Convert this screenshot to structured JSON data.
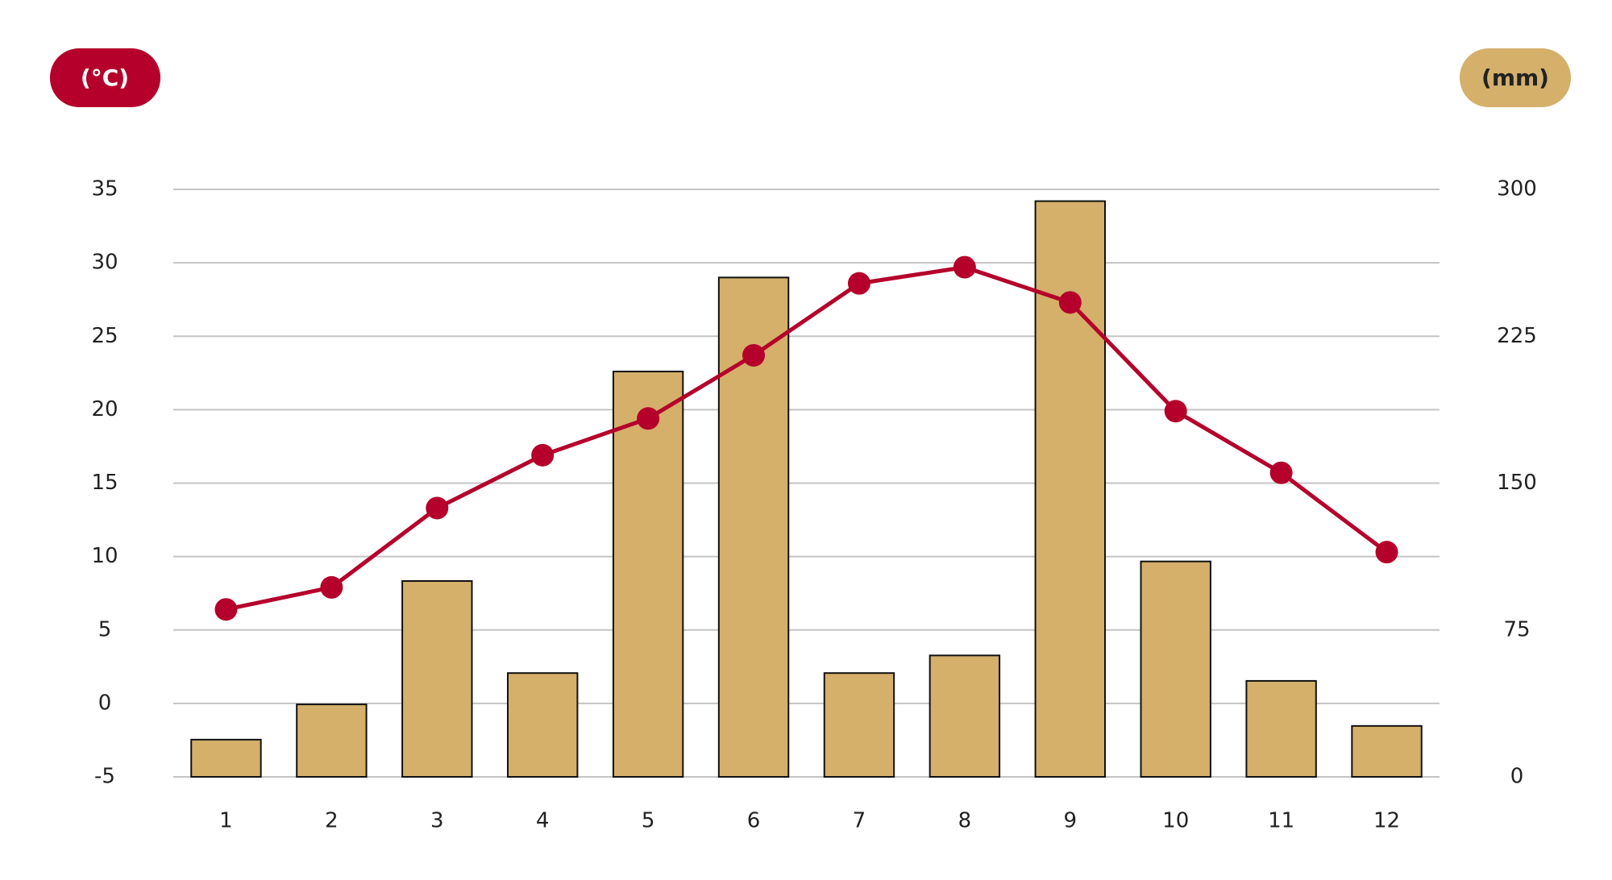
{
  "chart_data": {
    "type": "combo",
    "ylabel": "(°C)",
    "y2label": "(mm)",
    "categories": [
      "1",
      "2",
      "3",
      "4",
      "5",
      "6",
      "7",
      "8",
      "9",
      "10",
      "11",
      "12"
    ],
    "series": [
      {
        "type": "bar",
        "axis": "y2",
        "color": "#d4b06b",
        "values": [
          19,
          37,
          100,
          53,
          207,
          255,
          53,
          62,
          294,
          110,
          49,
          26
        ]
      },
      {
        "type": "line",
        "axis": "y",
        "color": "#b5002b",
        "values": [
          6.4,
          7.9,
          13.3,
          16.9,
          19.4,
          23.7,
          28.6,
          29.7,
          27.3,
          19.9,
          15.7,
          10.3
        ]
      }
    ],
    "ylim": [
      -5,
      35
    ],
    "yticks": [
      -5,
      0,
      5,
      10,
      15,
      20,
      25,
      30,
      35
    ],
    "y2lim": [
      0,
      300
    ],
    "y2ticks": [
      0,
      75,
      150,
      225,
      300
    ],
    "grid": true
  }
}
